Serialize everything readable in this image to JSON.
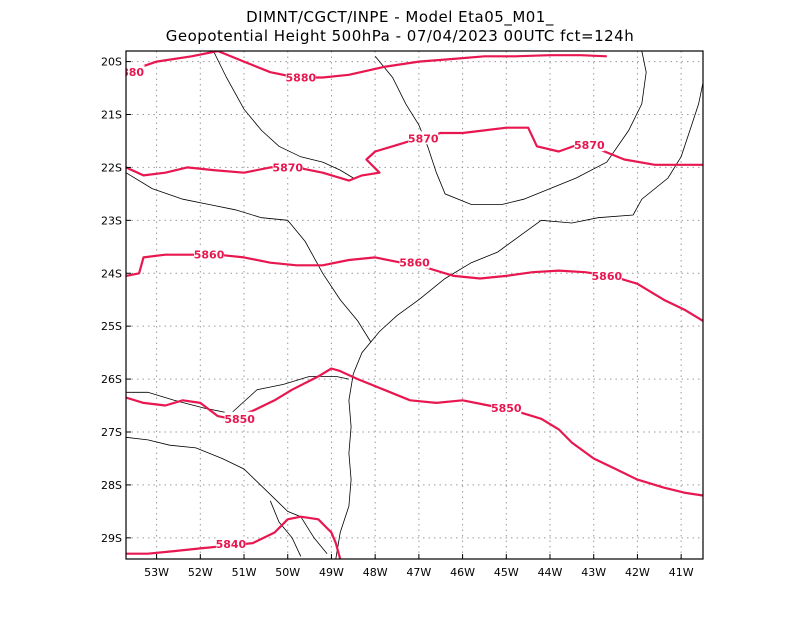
{
  "header": {
    "line1": "DIMNT/CGCT/INPE -  Model Eta05_M01_",
    "line2": "Geopotential Height 500hPa -  07/04/2023 00UTC fct=124h"
  },
  "colors": {
    "contour": "#e8174f",
    "coast": "#000000",
    "grid": "#9a9a9a"
  },
  "axes": {
    "lon_range": [
      -53.7,
      -40.5
    ],
    "lat_range": [
      -29.4,
      -19.8
    ],
    "lon_ticks": [
      "53W",
      "52W",
      "51W",
      "50W",
      "49W",
      "48W",
      "47W",
      "46W",
      "45W",
      "44W",
      "43W",
      "42W",
      "41W"
    ],
    "lat_ticks": [
      "20S",
      "21S",
      "22S",
      "23S",
      "24S",
      "25S",
      "26S",
      "27S",
      "28S",
      "29S"
    ]
  },
  "contours": [
    {
      "value": 5880,
      "label": "5880",
      "label_text": "5880",
      "partial_label": "880",
      "points": [
        [
          -53.7,
          -20.2
        ],
        [
          -53.0,
          -20.0
        ],
        [
          -52.2,
          -19.9
        ],
        [
          -51.6,
          -19.8
        ],
        [
          -51.0,
          -20.0
        ],
        [
          -50.4,
          -20.2
        ],
        [
          -49.8,
          -20.3
        ],
        [
          -49.2,
          -20.3
        ],
        [
          -48.6,
          -20.25
        ],
        [
          -47.8,
          -20.1
        ],
        [
          -47.0,
          -20.0
        ],
        [
          -46.2,
          -19.95
        ],
        [
          -45.5,
          -19.9
        ],
        [
          -44.8,
          -19.9
        ],
        [
          -44.0,
          -19.88
        ],
        [
          -43.3,
          -19.88
        ],
        [
          -42.7,
          -19.9
        ]
      ]
    },
    {
      "value": 5870,
      "label": "5870",
      "points": [
        [
          -53.7,
          -22.0
        ],
        [
          -53.3,
          -22.15
        ],
        [
          -52.8,
          -22.1
        ],
        [
          -52.3,
          -22.0
        ],
        [
          -51.7,
          -22.05
        ],
        [
          -51.0,
          -22.1
        ],
        [
          -50.4,
          -22.0
        ],
        [
          -49.8,
          -22.0
        ],
        [
          -49.2,
          -22.1
        ],
        [
          -48.6,
          -22.25
        ],
        [
          -48.3,
          -22.15
        ],
        [
          -47.9,
          -22.1
        ],
        [
          -48.2,
          -21.85
        ],
        [
          -48.0,
          -21.7
        ],
        [
          -47.6,
          -21.6
        ],
        [
          -47.0,
          -21.45
        ],
        [
          -46.5,
          -21.35
        ],
        [
          -46.0,
          -21.35
        ],
        [
          -45.5,
          -21.3
        ],
        [
          -45.0,
          -21.25
        ],
        [
          -44.5,
          -21.25
        ],
        [
          -44.3,
          -21.6
        ],
        [
          -43.8,
          -21.7
        ],
        [
          -43.3,
          -21.55
        ],
        [
          -42.9,
          -21.65
        ],
        [
          -42.3,
          -21.85
        ],
        [
          -41.6,
          -21.95
        ],
        [
          -41.0,
          -21.95
        ],
        [
          -40.5,
          -21.95
        ]
      ]
    },
    {
      "value": 5860,
      "label": "5860",
      "points": [
        [
          -53.7,
          -24.05
        ],
        [
          -53.4,
          -24.0
        ],
        [
          -53.3,
          -23.7
        ],
        [
          -52.8,
          -23.65
        ],
        [
          -52.2,
          -23.65
        ],
        [
          -51.6,
          -23.65
        ],
        [
          -51.0,
          -23.7
        ],
        [
          -50.4,
          -23.8
        ],
        [
          -49.8,
          -23.85
        ],
        [
          -49.2,
          -23.85
        ],
        [
          -48.6,
          -23.75
        ],
        [
          -48.0,
          -23.7
        ],
        [
          -47.4,
          -23.8
        ],
        [
          -46.8,
          -23.9
        ],
        [
          -46.2,
          -24.05
        ],
        [
          -45.6,
          -24.1
        ],
        [
          -45.0,
          -24.05
        ],
        [
          -44.4,
          -23.98
        ],
        [
          -43.8,
          -23.95
        ],
        [
          -43.2,
          -23.98
        ],
        [
          -42.6,
          -24.05
        ],
        [
          -42.0,
          -24.2
        ],
        [
          -41.4,
          -24.5
        ],
        [
          -40.9,
          -24.7
        ],
        [
          -40.5,
          -24.9
        ]
      ]
    },
    {
      "value": 5850,
      "label": "5850",
      "points": [
        [
          -53.7,
          -26.35
        ],
        [
          -53.3,
          -26.45
        ],
        [
          -52.8,
          -26.5
        ],
        [
          -52.4,
          -26.4
        ],
        [
          -52.0,
          -26.45
        ],
        [
          -51.6,
          -26.7
        ],
        [
          -51.3,
          -26.75
        ],
        [
          -50.8,
          -26.6
        ],
        [
          -50.3,
          -26.4
        ],
        [
          -49.9,
          -26.2
        ],
        [
          -49.3,
          -25.95
        ],
        [
          -49.0,
          -25.8
        ],
        [
          -48.8,
          -25.85
        ],
        [
          -48.4,
          -26.0
        ],
        [
          -47.8,
          -26.2
        ],
        [
          -47.2,
          -26.4
        ],
        [
          -46.6,
          -26.45
        ],
        [
          -46.0,
          -26.4
        ],
        [
          -45.4,
          -26.5
        ],
        [
          -44.8,
          -26.6
        ],
        [
          -44.2,
          -26.75
        ],
        [
          -43.8,
          -26.95
        ],
        [
          -43.5,
          -27.2
        ],
        [
          -43.0,
          -27.5
        ],
        [
          -42.5,
          -27.7
        ],
        [
          -42.0,
          -27.9
        ],
        [
          -41.4,
          -28.05
        ],
        [
          -40.9,
          -28.15
        ],
        [
          -40.5,
          -28.2
        ]
      ]
    },
    {
      "value": 5840,
      "label": "5840",
      "points": [
        [
          -53.7,
          -29.3
        ],
        [
          -53.2,
          -29.3
        ],
        [
          -52.6,
          -29.25
        ],
        [
          -52.0,
          -29.2
        ],
        [
          -51.4,
          -29.15
        ],
        [
          -50.8,
          -29.1
        ],
        [
          -50.3,
          -28.9
        ],
        [
          -50.0,
          -28.65
        ],
        [
          -49.7,
          -28.6
        ],
        [
          -49.3,
          -28.65
        ],
        [
          -49.0,
          -28.9
        ],
        [
          -48.9,
          -29.1
        ],
        [
          -48.8,
          -29.4
        ]
      ]
    }
  ]
}
